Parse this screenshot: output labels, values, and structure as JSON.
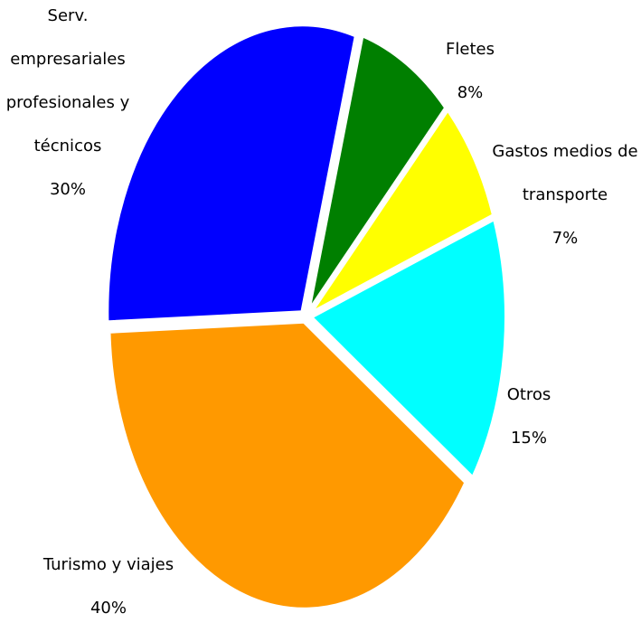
{
  "chart_data": {
    "type": "pie",
    "categories": [
      "Serv. empresariales profesionales y técnicos",
      "Fletes",
      "Gastos medios de transporte",
      "Otros",
      "Turismo y viajes"
    ],
    "values": [
      30,
      8,
      7,
      15,
      40
    ],
    "value_labels": [
      "30%",
      "8%",
      "7%",
      "15%",
      "40%"
    ],
    "colors": [
      "#0000ff",
      "#007f00",
      "#ffff00",
      "#00ffff",
      "#ff9900"
    ]
  }
}
